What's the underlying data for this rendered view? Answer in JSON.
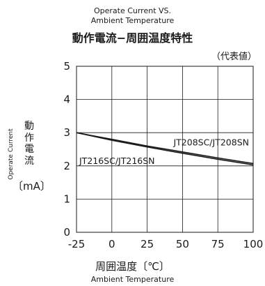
{
  "chart_data": {
    "type": "line",
    "title_lines": [
      "Operate Current VS.",
      "Ambient Temperature"
    ],
    "title_jp": "動作電流−周囲温度特性",
    "note": "（代表値）",
    "ylabel_en": "Operate Current",
    "ylabel_jp": "動作電流",
    "ylabel_unit": "〔mA〕",
    "xlabel_jp": "周囲温度〔℃〕",
    "xlabel_en": "Ambient Temperature",
    "xlim": [
      -25,
      100
    ],
    "ylim": [
      0,
      5
    ],
    "xticks": [
      "-25",
      "0",
      "25",
      "50",
      "75",
      "100"
    ],
    "yticks": [
      "0",
      "1",
      "2",
      "3",
      "4",
      "5"
    ],
    "grid": true,
    "series": [
      {
        "name": "JT208SC/JT208SN",
        "x": [
          -25,
          0,
          25,
          50,
          75,
          100
        ],
        "y": [
          3.0,
          2.8,
          2.6,
          2.42,
          2.24,
          2.07
        ]
      },
      {
        "name": "JT216SC/JT216SN",
        "x": [
          -25,
          0,
          25,
          50,
          75,
          100
        ],
        "y": [
          3.0,
          2.77,
          2.57,
          2.38,
          2.2,
          2.03
        ]
      }
    ]
  }
}
